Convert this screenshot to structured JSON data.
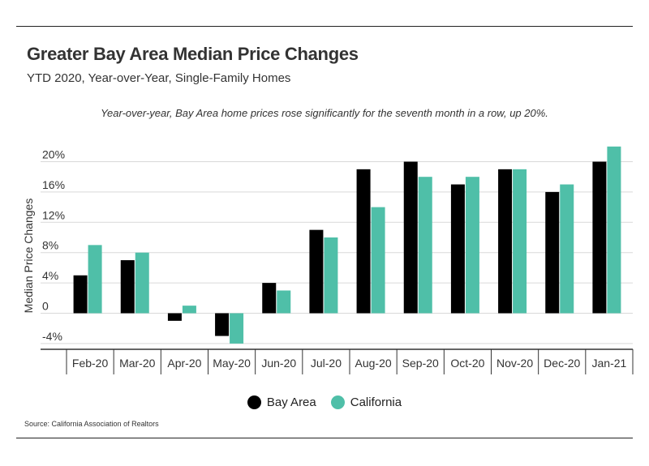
{
  "header": {
    "title": "Greater Bay Area Median Price Changes",
    "subtitle": "YTD 2020, Year-over-Year, Single-Family Homes"
  },
  "annotation": "Year-over-year, Bay Area home prices rose significantly for the seventh month in a row, up 20%.",
  "source": "Source:  California Association of Realtors",
  "colors": {
    "bay_area": "#000000",
    "california": "#4fbfa8",
    "grid": "#d9d9d9"
  },
  "chart_data": {
    "type": "bar",
    "ylabel": "Median Price Changes",
    "xlabel": "",
    "ylim": [
      -5,
      22
    ],
    "yticks": [
      -4,
      0,
      4,
      8,
      12,
      16,
      20
    ],
    "ytick_labels": [
      "-4%",
      "0",
      "4%",
      "8%",
      "12%",
      "16%",
      "20%"
    ],
    "categories": [
      "Feb-20",
      "Mar-20",
      "Apr-20",
      "May-20",
      "Jun-20",
      "Jul-20",
      "Aug-20",
      "Sep-20",
      "Oct-20",
      "Nov-20",
      "Dec-20",
      "Jan-21"
    ],
    "series": [
      {
        "name": "Bay Area",
        "values": [
          5,
          7,
          -1,
          -3,
          4,
          11,
          19,
          20,
          17,
          19,
          16,
          20
        ]
      },
      {
        "name": "California",
        "values": [
          9,
          8,
          1,
          -4,
          3,
          10,
          14,
          18,
          18,
          19,
          17,
          22
        ]
      }
    ],
    "grid": true,
    "legend_position": "bottom"
  }
}
